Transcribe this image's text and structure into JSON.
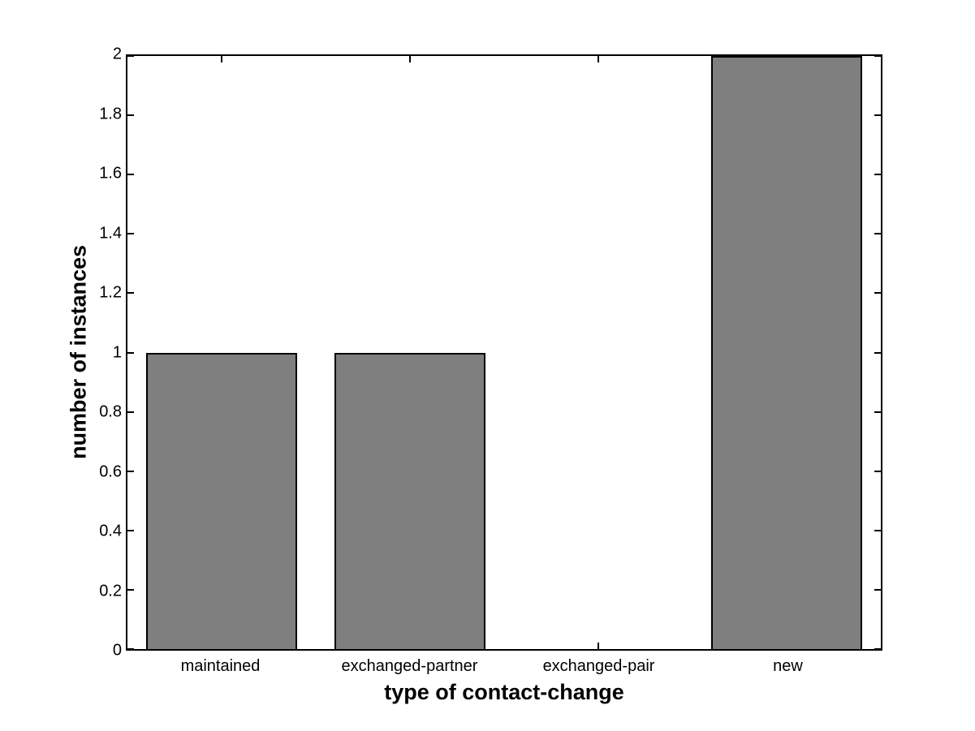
{
  "chart_data": {
    "type": "bar",
    "categories": [
      "maintained",
      "exchanged-partner",
      "exchanged-pair",
      "new"
    ],
    "values": [
      1,
      1,
      0,
      2
    ],
    "xlabel": "type of contact-change",
    "ylabel": "number of instances",
    "ylim": [
      0,
      2
    ],
    "yticks": [
      0,
      0.2,
      0.4,
      0.6,
      0.8,
      1,
      1.2,
      1.4,
      1.6,
      1.8,
      2
    ],
    "bar_width_fraction": 0.8,
    "bar_color": "#7f7f7f",
    "bar_edge_color": "#000000",
    "axis_color": "#000000",
    "background_color": "#ffffff",
    "grid": false,
    "tick_direction": "in",
    "legend": "none",
    "title": ""
  }
}
